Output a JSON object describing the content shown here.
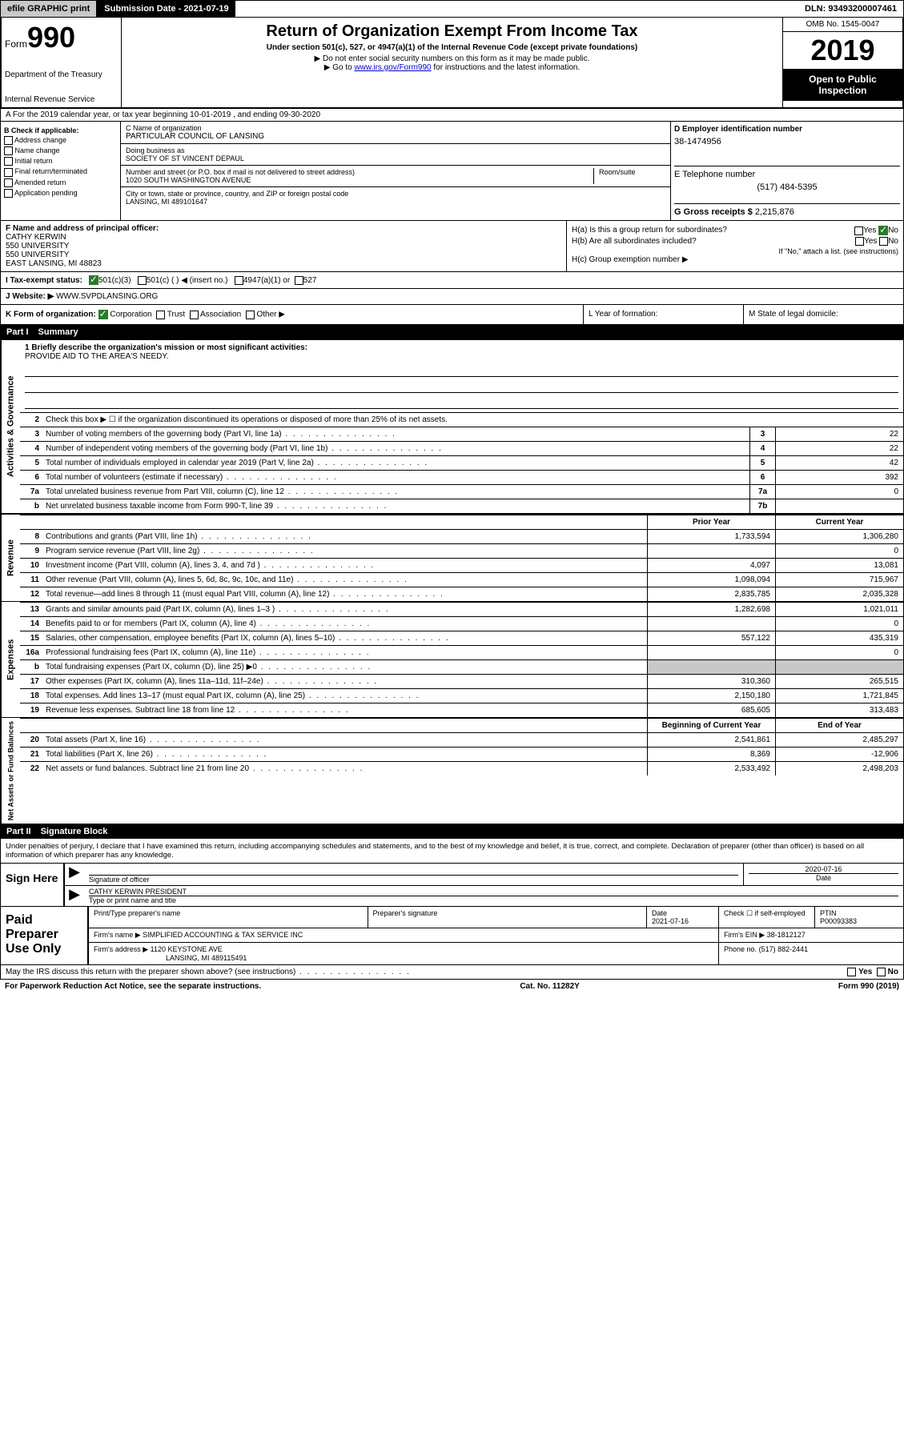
{
  "top": {
    "efile": "efile GRAPHIC print",
    "submission_label": "Submission Date - 2021-07-19",
    "dln": "DLN: 93493200007461"
  },
  "header": {
    "form_label": "Form",
    "form_number": "990",
    "dept1": "Department of the Treasury",
    "dept2": "Internal Revenue Service",
    "title": "Return of Organization Exempt From Income Tax",
    "sub1": "Under section 501(c), 527, or 4947(a)(1) of the Internal Revenue Code (except private foundations)",
    "sub2": "▶ Do not enter social security numbers on this form as it may be made public.",
    "sub3_pre": "▶ Go to ",
    "sub3_link": "www.irs.gov/Form990",
    "sub3_post": " for instructions and the latest information.",
    "omb": "OMB No. 1545-0047",
    "year": "2019",
    "open_public": "Open to Public Inspection"
  },
  "section_a": "A   For the 2019 calendar year, or tax year beginning 10-01-2019    , and ending 09-30-2020",
  "col_b": {
    "title": "B Check if applicable:",
    "items": [
      "Address change",
      "Name change",
      "Initial return",
      "Final return/terminated",
      "Amended return",
      "Application pending"
    ]
  },
  "col_c": {
    "name_label": "C Name of organization",
    "name": "PARTICULAR COUNCIL OF LANSING",
    "dba_label": "Doing business as",
    "dba": "SOCIETY OF ST VINCENT DEPAUL",
    "addr_label": "Number and street (or P.O. box if mail is not delivered to street address)",
    "room_label": "Room/suite",
    "addr": "1020 SOUTH WASHINGTON AVENUE",
    "city_label": "City or town, state or province, country, and ZIP or foreign postal code",
    "city": "LANSING, MI  489101647"
  },
  "col_d": {
    "label": "D Employer identification number",
    "value": "38-1474956"
  },
  "col_e": {
    "label": "E Telephone number",
    "value": "(517) 484-5395"
  },
  "col_g": {
    "label": "G Gross receipts $",
    "value": "2,215,876"
  },
  "col_f": {
    "label": "F  Name and address of principal officer:",
    "name": "CATHY KERWIN",
    "addr1": "550 UNIVERSITY",
    "addr2": "550 UNIVERSITY",
    "city": "EAST LANSING, MI  48823"
  },
  "col_h": {
    "ha": "H(a)  Is this a group return for subordinates?",
    "hb": "H(b)  Are all subordinates included?",
    "hb_note": "If \"No,\" attach a list. (see instructions)",
    "hc": "H(c)  Group exemption number ▶",
    "yes": "Yes",
    "no": "No"
  },
  "row_i": {
    "label": "I   Tax-exempt status:",
    "opt1": "501(c)(3)",
    "opt2": "501(c) (   ) ◀ (insert no.)",
    "opt3": "4947(a)(1) or",
    "opt4": "527"
  },
  "row_j": {
    "label": "J   Website: ▶",
    "value": "WWW.SVPDLANSING.ORG"
  },
  "row_k": {
    "k_label": "K Form of organization:",
    "corp": "Corporation",
    "trust": "Trust",
    "assoc": "Association",
    "other": "Other ▶",
    "l_label": "L Year of formation:",
    "m_label": "M State of legal domicile:"
  },
  "part1": {
    "header": "Part I",
    "title": "Summary",
    "tab_gov": "Activities & Governance",
    "tab_rev": "Revenue",
    "tab_exp": "Expenses",
    "tab_net": "Net Assets or Fund Balances",
    "line1_label": "1  Briefly describe the organization's mission or most significant activities:",
    "line1_text": "PROVIDE AID TO THE AREA'S NEEDY.",
    "line2": "Check this box ▶ ☐  if the organization discontinued its operations or disposed of more than 25% of its net assets.",
    "lines_gov": [
      {
        "n": "3",
        "t": "Number of voting members of the governing body (Part VI, line 1a)",
        "box": "3",
        "v": "22"
      },
      {
        "n": "4",
        "t": "Number of independent voting members of the governing body (Part VI, line 1b)",
        "box": "4",
        "v": "22"
      },
      {
        "n": "5",
        "t": "Total number of individuals employed in calendar year 2019 (Part V, line 2a)",
        "box": "5",
        "v": "42"
      },
      {
        "n": "6",
        "t": "Total number of volunteers (estimate if necessary)",
        "box": "6",
        "v": "392"
      },
      {
        "n": "7a",
        "t": "Total unrelated business revenue from Part VIII, column (C), line 12",
        "box": "7a",
        "v": "0"
      },
      {
        "n": "b",
        "t": "Net unrelated business taxable income from Form 990-T, line 39",
        "box": "7b",
        "v": ""
      }
    ],
    "prior_year": "Prior Year",
    "current_year": "Current Year",
    "lines_rev": [
      {
        "n": "8",
        "t": "Contributions and grants (Part VIII, line 1h)",
        "py": "1,733,594",
        "cy": "1,306,280"
      },
      {
        "n": "9",
        "t": "Program service revenue (Part VIII, line 2g)",
        "py": "",
        "cy": "0"
      },
      {
        "n": "10",
        "t": "Investment income (Part VIII, column (A), lines 3, 4, and 7d )",
        "py": "4,097",
        "cy": "13,081"
      },
      {
        "n": "11",
        "t": "Other revenue (Part VIII, column (A), lines 5, 6d, 8c, 9c, 10c, and 11e)",
        "py": "1,098,094",
        "cy": "715,967"
      },
      {
        "n": "12",
        "t": "Total revenue—add lines 8 through 11 (must equal Part VIII, column (A), line 12)",
        "py": "2,835,785",
        "cy": "2,035,328"
      }
    ],
    "lines_exp": [
      {
        "n": "13",
        "t": "Grants and similar amounts paid (Part IX, column (A), lines 1–3 )",
        "py": "1,282,698",
        "cy": "1,021,011"
      },
      {
        "n": "14",
        "t": "Benefits paid to or for members (Part IX, column (A), line 4)",
        "py": "",
        "cy": "0"
      },
      {
        "n": "15",
        "t": "Salaries, other compensation, employee benefits (Part IX, column (A), lines 5–10)",
        "py": "557,122",
        "cy": "435,319"
      },
      {
        "n": "16a",
        "t": "Professional fundraising fees (Part IX, column (A), line 11e)",
        "py": "",
        "cy": "0"
      },
      {
        "n": "b",
        "t": "Total fundraising expenses (Part IX, column (D), line 25) ▶0",
        "py": "shaded",
        "cy": "shaded"
      },
      {
        "n": "17",
        "t": "Other expenses (Part IX, column (A), lines 11a–11d, 11f–24e)",
        "py": "310,360",
        "cy": "265,515"
      },
      {
        "n": "18",
        "t": "Total expenses. Add lines 13–17 (must equal Part IX, column (A), line 25)",
        "py": "2,150,180",
        "cy": "1,721,845"
      },
      {
        "n": "19",
        "t": "Revenue less expenses. Subtract line 18 from line 12",
        "py": "685,605",
        "cy": "313,483"
      }
    ],
    "beg_year": "Beginning of Current Year",
    "end_year": "End of Year",
    "lines_net": [
      {
        "n": "20",
        "t": "Total assets (Part X, line 16)",
        "py": "2,541,861",
        "cy": "2,485,297"
      },
      {
        "n": "21",
        "t": "Total liabilities (Part X, line 26)",
        "py": "8,369",
        "cy": "-12,906"
      },
      {
        "n": "22",
        "t": "Net assets or fund balances. Subtract line 21 from line 20",
        "py": "2,533,492",
        "cy": "2,498,203"
      }
    ]
  },
  "part2": {
    "header": "Part II",
    "title": "Signature Block",
    "intro": "Under penalties of perjury, I declare that I have examined this return, including accompanying schedules and statements, and to the best of my knowledge and belief, it is true, correct, and complete. Declaration of preparer (other than officer) is based on all information of which preparer has any knowledge.",
    "sign_here": "Sign Here",
    "sig_officer": "Signature of officer",
    "sig_date": "2020-07-16",
    "date_label": "Date",
    "officer_name": "CATHY KERWIN  PRESIDENT",
    "officer_label": "Type or print name and title",
    "paid_prep": "Paid Preparer Use Only",
    "prep_name_label": "Print/Type preparer's name",
    "prep_sig_label": "Preparer's signature",
    "prep_date_label": "Date",
    "prep_date": "2021-07-16",
    "check_label": "Check ☐ if self-employed",
    "ptin_label": "PTIN",
    "ptin": "P00093383",
    "firm_name_label": "Firm's name     ▶",
    "firm_name": "SIMPLIFIED ACCOUNTING & TAX SERVICE INC",
    "firm_ein_label": "Firm's EIN ▶",
    "firm_ein": "38-1812127",
    "firm_addr_label": "Firm's address ▶",
    "firm_addr1": "1120 KEYSTONE AVE",
    "firm_addr2": "LANSING, MI  489115491",
    "phone_label": "Phone no.",
    "phone": "(517) 882-2441"
  },
  "footer": {
    "discuss": "May the IRS discuss this return with the preparer shown above? (see instructions)",
    "yes": "Yes",
    "no": "No",
    "pra": "For Paperwork Reduction Act Notice, see the separate instructions.",
    "cat": "Cat. No. 11282Y",
    "form": "Form 990 (2019)"
  }
}
